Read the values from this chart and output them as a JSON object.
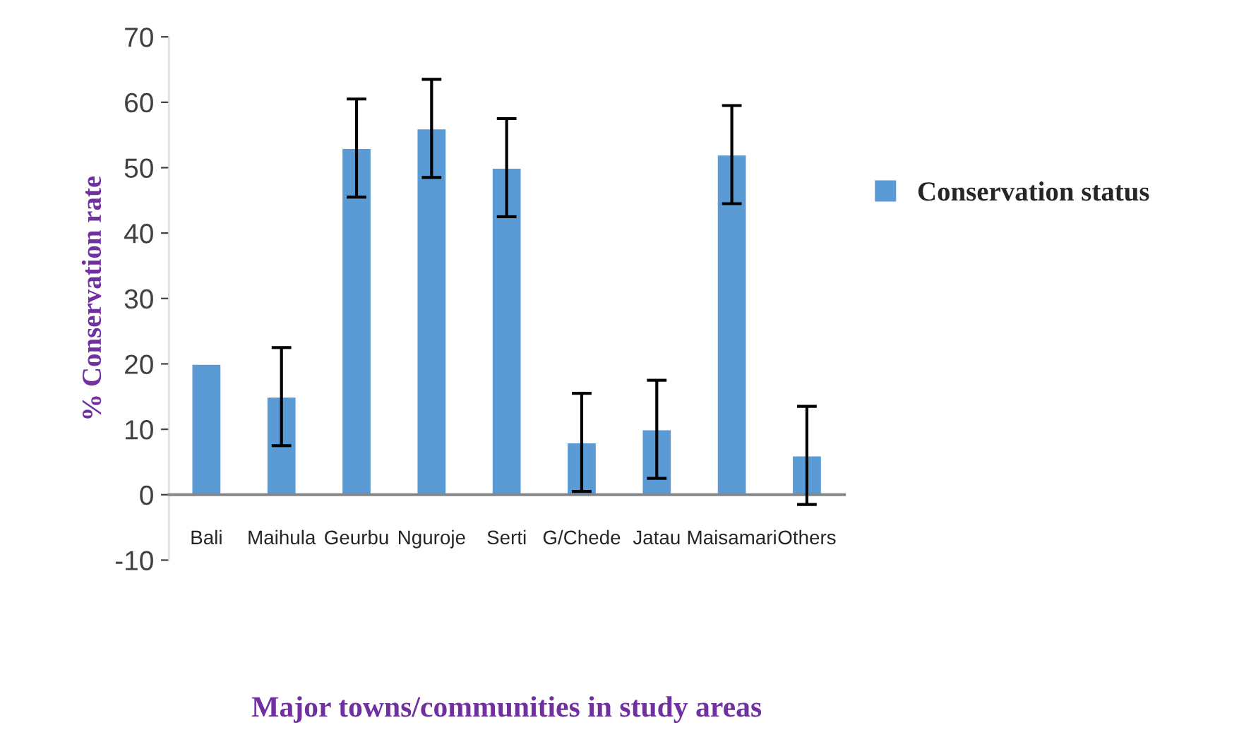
{
  "chart_data": {
    "type": "bar",
    "xlabel": "Major towns/communities in study areas",
    "ylabel": "% Conservation rate",
    "categories": [
      "Bali",
      "Maihula",
      "Geurbu",
      "Nguroje",
      "Serti",
      "G/Chede",
      "Jatau",
      "Maisamari",
      "Others"
    ],
    "series": [
      {
        "name": "Conservation status",
        "color": "#5b9bd5",
        "values": [
          20,
          15,
          53,
          56,
          50,
          8,
          10,
          52,
          6
        ],
        "errors": [
          null,
          7.5,
          7.5,
          7.5,
          7.5,
          7.5,
          7.5,
          7.5,
          7.5
        ]
      }
    ],
    "ylim": [
      -10,
      70
    ],
    "yticks": [
      -10,
      0,
      10,
      20,
      30,
      40,
      50,
      60,
      70
    ],
    "grid": false,
    "legend": "right"
  }
}
